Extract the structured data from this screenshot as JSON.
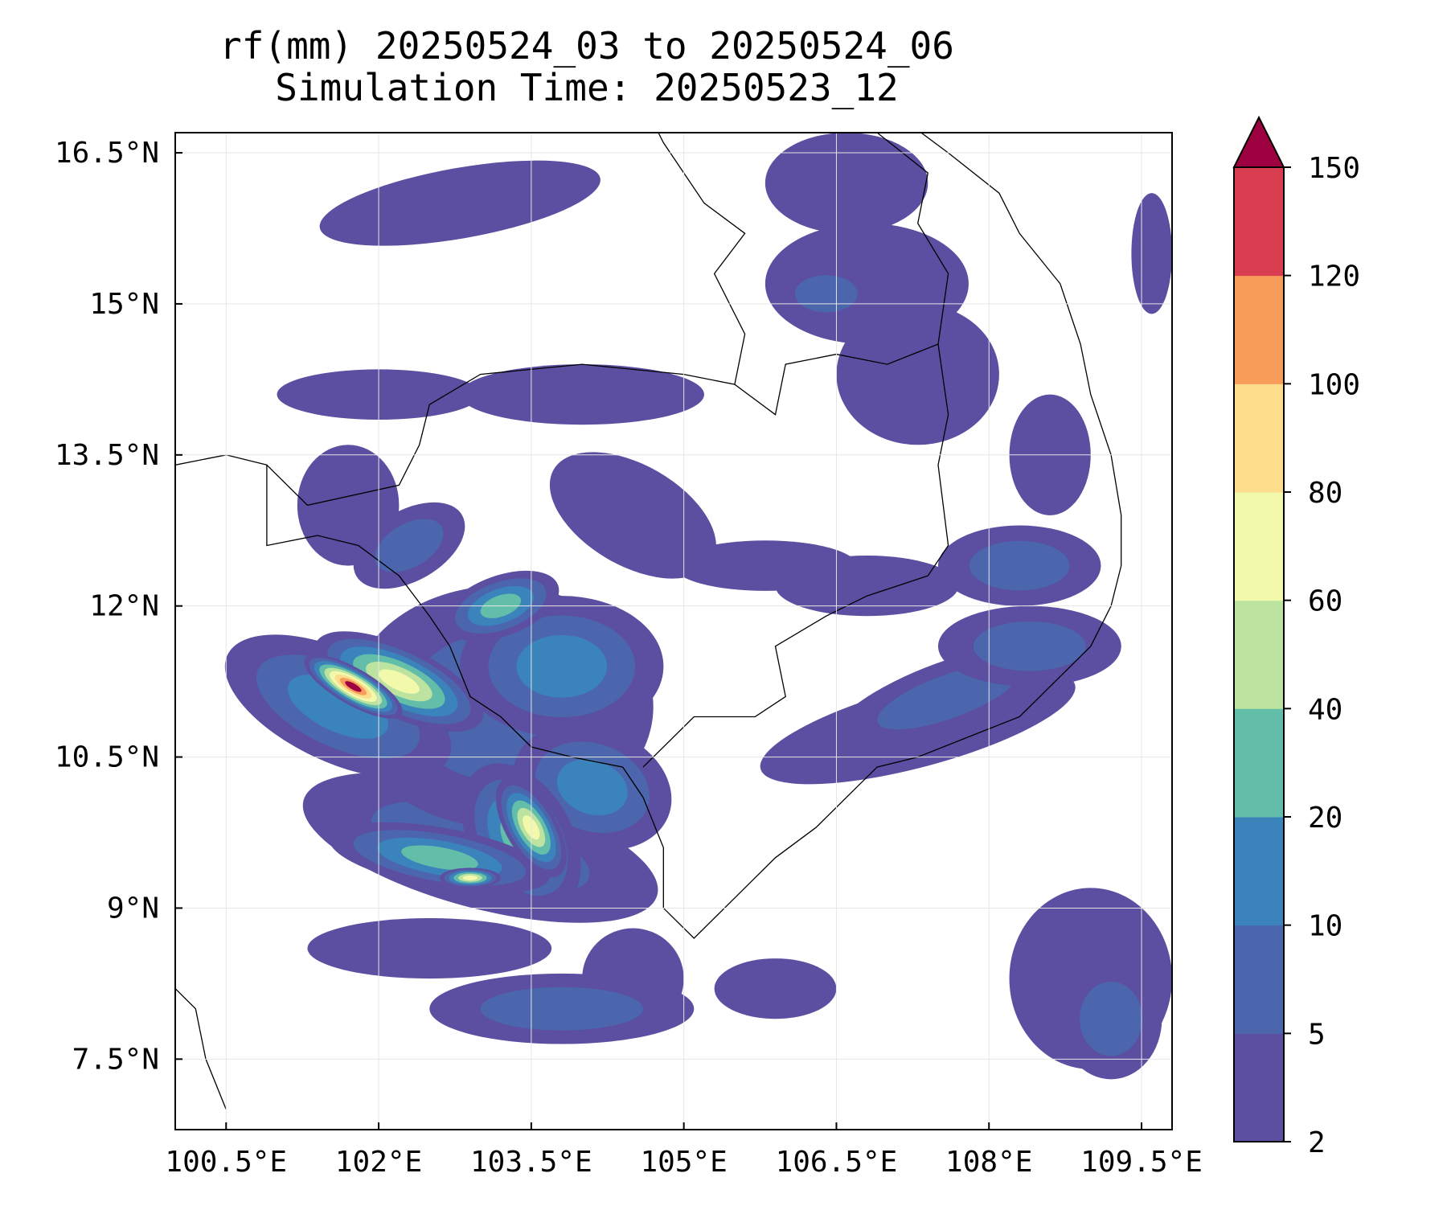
{
  "title": {
    "line1": "rf(mm) 20250524_03 to 20250524_06",
    "line2": "Simulation Time: 20250523_12"
  },
  "map": {
    "lon_range": [
      100.0,
      109.8
    ],
    "lat_range": [
      6.8,
      16.7
    ],
    "x_ticks": [
      {
        "value": 100.5,
        "label": "100.5°E"
      },
      {
        "value": 102.0,
        "label": "102°E"
      },
      {
        "value": 103.5,
        "label": "103.5°E"
      },
      {
        "value": 105.0,
        "label": "105°E"
      },
      {
        "value": 106.5,
        "label": "106.5°E"
      },
      {
        "value": 108.0,
        "label": "108°E"
      },
      {
        "value": 109.5,
        "label": "109.5°E"
      }
    ],
    "y_ticks": [
      {
        "value": 7.5,
        "label": "7.5°N"
      },
      {
        "value": 9.0,
        "label": "9°N"
      },
      {
        "value": 10.5,
        "label": "10.5°N"
      },
      {
        "value": 12.0,
        "label": "12°N"
      },
      {
        "value": 13.5,
        "label": "13.5°N"
      },
      {
        "value": 15.0,
        "label": "15°N"
      },
      {
        "value": 16.5,
        "label": "16.5°N"
      }
    ],
    "grid": true,
    "rain_cells": [
      {
        "lon": 101.75,
        "lat": 11.2,
        "rlon": 0.55,
        "rlat": 0.18,
        "rot": 30,
        "level": 9
      },
      {
        "lon": 102.2,
        "lat": 11.25,
        "rlon": 0.9,
        "rlat": 0.35,
        "rot": 25,
        "level": 6
      },
      {
        "lon": 101.6,
        "lat": 11.0,
        "rlon": 1.2,
        "rlat": 0.55,
        "rot": 25,
        "level": 3
      },
      {
        "lon": 103.5,
        "lat": 9.8,
        "rlon": 0.25,
        "rlat": 0.55,
        "rot": -30,
        "level": 6
      },
      {
        "lon": 103.4,
        "lat": 9.7,
        "rlon": 0.5,
        "rlat": 0.8,
        "rot": -30,
        "level": 4
      },
      {
        "lon": 102.9,
        "lat": 9.3,
        "rlon": 0.3,
        "rlat": 0.1,
        "rot": 0,
        "level": 6
      },
      {
        "lon": 102.6,
        "lat": 9.5,
        "rlon": 1.1,
        "rlat": 0.3,
        "rot": 10,
        "level": 4
      },
      {
        "lon": 103.0,
        "lat": 9.6,
        "rlon": 1.8,
        "rlat": 0.6,
        "rot": 15,
        "level": 2
      },
      {
        "lon": 103.2,
        "lat": 12.0,
        "rlon": 0.6,
        "rlat": 0.3,
        "rot": -20,
        "level": 4
      },
      {
        "lon": 103.8,
        "lat": 11.4,
        "rlon": 1.0,
        "rlat": 0.7,
        "rot": 0,
        "level": 3
      },
      {
        "lon": 103.2,
        "lat": 11.0,
        "rlon": 1.5,
        "rlat": 1.2,
        "rot": 0,
        "level": 2
      },
      {
        "lon": 104.1,
        "lat": 10.2,
        "rlon": 0.8,
        "rlat": 0.6,
        "rot": 20,
        "level": 3
      },
      {
        "lon": 102.3,
        "lat": 12.6,
        "rlon": 0.6,
        "rlat": 0.35,
        "rot": -30,
        "level": 2
      },
      {
        "lon": 103.8,
        "lat": 8.0,
        "rlon": 1.3,
        "rlat": 0.35,
        "rot": 0,
        "level": 2
      },
      {
        "lon": 102.5,
        "lat": 8.6,
        "rlon": 1.2,
        "rlat": 0.3,
        "rot": 0,
        "level": 1
      },
      {
        "lon": 104.5,
        "lat": 8.3,
        "rlon": 0.5,
        "rlat": 0.5,
        "rot": 0,
        "level": 1
      },
      {
        "lon": 107.6,
        "lat": 11.1,
        "rlon": 1.2,
        "rlat": 0.35,
        "rot": -20,
        "level": 2
      },
      {
        "lon": 108.4,
        "lat": 11.6,
        "rlon": 0.9,
        "rlat": 0.4,
        "rot": 0,
        "level": 2
      },
      {
        "lon": 107.3,
        "lat": 10.8,
        "rlon": 1.6,
        "rlat": 0.4,
        "rot": -15,
        "level": 1
      },
      {
        "lon": 108.3,
        "lat": 12.4,
        "rlon": 0.8,
        "rlat": 0.4,
        "rot": 0,
        "level": 2
      },
      {
        "lon": 109.2,
        "lat": 7.9,
        "rlon": 0.5,
        "rlat": 0.6,
        "rot": 0,
        "level": 2
      },
      {
        "lon": 109.0,
        "lat": 8.3,
        "rlon": 0.8,
        "rlat": 0.9,
        "rot": 0,
        "level": 1
      },
      {
        "lon": 106.4,
        "lat": 15.1,
        "rlon": 0.5,
        "rlat": 0.3,
        "rot": 0,
        "level": 2
      },
      {
        "lon": 106.8,
        "lat": 15.2,
        "rlon": 1.0,
        "rlat": 0.6,
        "rot": 0,
        "level": 1
      },
      {
        "lon": 105.8,
        "lat": 12.4,
        "rlon": 0.9,
        "rlat": 0.25,
        "rot": 0,
        "level": 1
      },
      {
        "lon": 106.8,
        "lat": 12.2,
        "rlon": 0.9,
        "rlat": 0.3,
        "rot": 0,
        "level": 1
      },
      {
        "lon": 102.0,
        "lat": 14.1,
        "rlon": 1.0,
        "rlat": 0.25,
        "rot": 0,
        "level": 1
      },
      {
        "lon": 104.0,
        "lat": 14.1,
        "rlon": 1.2,
        "rlat": 0.3,
        "rot": 0,
        "level": 1
      },
      {
        "lon": 102.8,
        "lat": 16.0,
        "rlon": 1.4,
        "rlat": 0.35,
        "rot": -10,
        "level": 1
      },
      {
        "lon": 106.6,
        "lat": 16.2,
        "rlon": 0.8,
        "rlat": 0.5,
        "rot": 0,
        "level": 1
      },
      {
        "lon": 107.3,
        "lat": 14.3,
        "rlon": 0.8,
        "rlat": 0.7,
        "rot": 0,
        "level": 1
      },
      {
        "lon": 104.5,
        "lat": 12.9,
        "rlon": 0.9,
        "rlat": 0.5,
        "rot": 30,
        "level": 1
      },
      {
        "lon": 101.7,
        "lat": 13.0,
        "rlon": 0.5,
        "rlat": 0.6,
        "rot": 0,
        "level": 1
      },
      {
        "lon": 109.6,
        "lat": 15.5,
        "rlon": 0.2,
        "rlat": 0.6,
        "rot": 0,
        "level": 1
      },
      {
        "lon": 108.6,
        "lat": 13.5,
        "rlon": 0.4,
        "rlat": 0.6,
        "rot": 0,
        "level": 1
      },
      {
        "lon": 105.9,
        "lat": 8.2,
        "rlon": 0.6,
        "rlat": 0.3,
        "rot": 0,
        "level": 1
      }
    ]
  },
  "colorbar": {
    "levels": [
      2,
      5,
      10,
      20,
      40,
      60,
      80,
      100,
      120,
      150
    ],
    "labels": [
      "2",
      "5",
      "10",
      "20",
      "40",
      "60",
      "80",
      "100",
      "120",
      "150"
    ],
    "colors": [
      "#5c4ea1",
      "#4b66ad",
      "#3a84bb",
      "#63bea9",
      "#bde3a1",
      "#f2f9ab",
      "#fbdd8c",
      "#f89c5a",
      "#d83e4f"
    ],
    "extend_color": "#9e0142"
  }
}
